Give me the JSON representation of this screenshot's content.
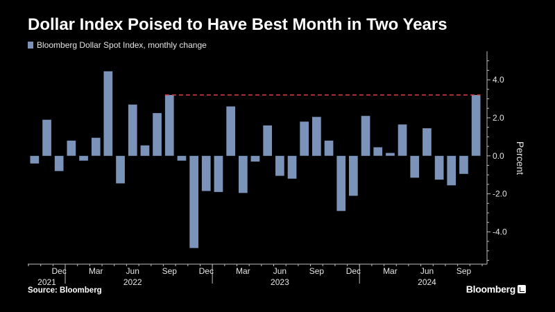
{
  "header": {
    "title": "Dollar Index Poised to Have Best Month in Two Years",
    "legend_label": "Bloomberg Dollar Spot Index, monthly change"
  },
  "footer": {
    "source": "Source: Bloomberg",
    "brand": "Bloomberg"
  },
  "colors": {
    "bar": "#7b93b8",
    "reference_line": "#e0404a",
    "axis": "#bfbfbf",
    "background": "#000000"
  },
  "chart_data": {
    "type": "bar",
    "title": "Dollar Index Poised to Have Best Month in Two Years",
    "ylabel": "Percent",
    "xlabel": "",
    "ylim": [
      -5.7,
      5.5
    ],
    "y_ticks": [
      4.0,
      2.0,
      0.0,
      -2.0,
      -4.0
    ],
    "y_tick_labels": [
      "4.0",
      "2.0",
      "0.0",
      "-2.0",
      "-4.0"
    ],
    "x_ticks": [
      {
        "index": 2,
        "label": "Dec"
      },
      {
        "index": 5,
        "label": "Mar"
      },
      {
        "index": 8,
        "label": "Jun"
      },
      {
        "index": 11,
        "label": "Sep"
      },
      {
        "index": 14,
        "label": "Dec"
      },
      {
        "index": 17,
        "label": "Mar"
      },
      {
        "index": 20,
        "label": "Jun"
      },
      {
        "index": 23,
        "label": "Sep"
      },
      {
        "index": 26,
        "label": "Dec"
      },
      {
        "index": 29,
        "label": "Mar"
      },
      {
        "index": 32,
        "label": "Jun"
      },
      {
        "index": 35,
        "label": "Sep"
      }
    ],
    "year_labels": [
      {
        "index": 1,
        "label": "2021"
      },
      {
        "index": 8,
        "label": "2022"
      },
      {
        "index": 20,
        "label": "2023"
      },
      {
        "index": 32,
        "label": "2024"
      }
    ],
    "year_separators": [
      2.5,
      14.5,
      26.5
    ],
    "reference_line": {
      "value": 3.2,
      "from_index": 11
    },
    "series": [
      {
        "name": "Bloomberg Dollar Spot Index, monthly change",
        "values": [
          -0.4,
          1.9,
          -0.8,
          0.8,
          -0.25,
          0.95,
          4.45,
          -1.45,
          2.7,
          0.55,
          2.25,
          3.2,
          -0.25,
          -4.85,
          -1.85,
          -1.9,
          2.6,
          -1.95,
          -0.3,
          1.6,
          -1.05,
          -1.2,
          1.8,
          2.05,
          0.8,
          -2.9,
          -2.1,
          2.1,
          0.45,
          0.15,
          1.65,
          -1.15,
          1.45,
          -1.25,
          -1.55,
          -0.95,
          3.2
        ]
      }
    ]
  }
}
